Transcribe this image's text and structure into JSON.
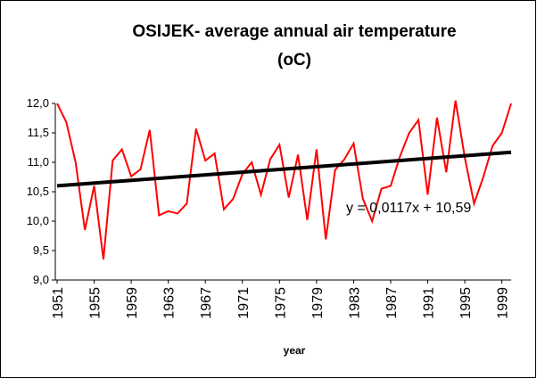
{
  "chart_data": {
    "type": "line",
    "title": [
      "OSIJEK- average annual air temperature",
      "(oC)"
    ],
    "x_label": "year",
    "x": [
      1951,
      1952,
      1953,
      1954,
      1955,
      1956,
      1957,
      1958,
      1959,
      1960,
      1961,
      1962,
      1963,
      1964,
      1965,
      1966,
      1967,
      1968,
      1969,
      1970,
      1971,
      1972,
      1973,
      1974,
      1975,
      1976,
      1977,
      1978,
      1979,
      1980,
      1981,
      1982,
      1983,
      1984,
      1985,
      1986,
      1987,
      1988,
      1989,
      1990,
      1991,
      1992,
      1993,
      1994,
      1995,
      1996,
      1997,
      1998,
      1999,
      2000
    ],
    "series": [
      {
        "color": "#ff0000",
        "values": [
          12.0,
          11.68,
          11.0,
          9.85,
          10.6,
          9.35,
          11.03,
          11.22,
          10.76,
          10.88,
          11.55,
          10.1,
          10.17,
          10.13,
          10.3,
          11.57,
          11.03,
          11.15,
          10.2,
          10.38,
          10.8,
          11.0,
          10.45,
          11.05,
          11.3,
          10.4,
          11.13,
          10.02,
          11.22,
          9.69,
          10.87,
          11.05,
          11.32,
          10.38,
          10.0,
          10.55,
          10.6,
          11.1,
          11.5,
          11.72,
          10.45,
          11.76,
          10.83,
          12.05,
          11.08,
          10.3,
          10.75,
          11.28,
          11.5,
          12.0
        ]
      }
    ],
    "trendline": {
      "color": "#000000",
      "start": 10.6,
      "end": 11.17,
      "label": "y = 0,0117x + 10,59"
    },
    "xlim": [
      1951,
      2000
    ],
    "xticks": [
      1951,
      1955,
      1959,
      1963,
      1967,
      1971,
      1975,
      1979,
      1983,
      1987,
      1991,
      1995,
      1999
    ],
    "ylim": [
      9.0,
      12.0
    ],
    "yticks": [
      {
        "value": 9.0,
        "label": "9,0"
      },
      {
        "value": 9.5,
        "label": "9,5"
      },
      {
        "value": 10.0,
        "label": "10,0"
      },
      {
        "value": 10.5,
        "label": "10,5"
      },
      {
        "value": 11.0,
        "label": "11,0"
      },
      {
        "value": 11.5,
        "label": "11,5"
      },
      {
        "value": 12.0,
        "label": "12,0"
      }
    ]
  }
}
